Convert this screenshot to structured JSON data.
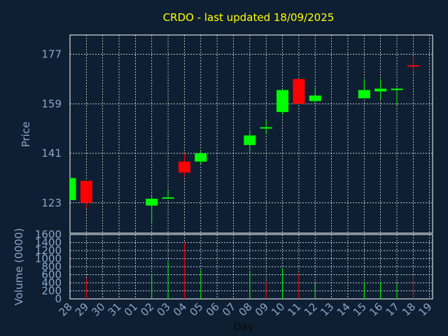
{
  "title": "CRDO - last updated 18/09/2025",
  "colors": {
    "background": "#0e1f33",
    "title": "#ffff00",
    "axis_text": "#8aa6c8",
    "grid": "#ffffff",
    "up": "#00ff00",
    "down": "#ff0000"
  },
  "chart_data": [
    {
      "type": "candlestick",
      "ylabel": "Price",
      "ylim": [
        112,
        184
      ],
      "yticks": [
        123,
        141,
        159,
        177
      ],
      "grid": true,
      "candles": [
        {
          "day": "28",
          "open": 124,
          "close": 132,
          "high": 132,
          "low": 124
        },
        {
          "day": "29",
          "open": 131,
          "close": 123,
          "high": 131,
          "low": 121
        },
        {
          "day": "02",
          "open": 122,
          "close": 124.5,
          "high": 125.5,
          "low": 116
        },
        {
          "day": "03",
          "open": 124.5,
          "close": 125,
          "high": 127.5,
          "low": 124.5
        },
        {
          "day": "04",
          "open": 138,
          "close": 134,
          "high": 141,
          "low": 132.5
        },
        {
          "day": "05",
          "open": 138,
          "close": 141,
          "high": 142,
          "low": 137
        },
        {
          "day": "08",
          "open": 144,
          "close": 147.5,
          "high": 149.5,
          "low": 141
        },
        {
          "day": "09",
          "open": 150.5,
          "close": 150.5,
          "high": 153,
          "low": 148
        },
        {
          "day": "10",
          "open": 156,
          "close": 164,
          "high": 164,
          "low": 155
        },
        {
          "day": "11",
          "open": 168,
          "close": 159,
          "high": 168,
          "low": 159
        },
        {
          "day": "12",
          "open": 160,
          "close": 162,
          "high": 165,
          "low": 159
        },
        {
          "day": "15",
          "open": 161,
          "close": 164,
          "high": 168,
          "low": 161
        },
        {
          "day": "16",
          "open": 163.5,
          "close": 164.5,
          "high": 168,
          "low": 160.5
        },
        {
          "day": "17",
          "open": 164,
          "close": 164.5,
          "high": 165,
          "low": 158.5
        },
        {
          "day": "18",
          "open": 173,
          "close": 172.5,
          "high": 176.5,
          "low": 170.5
        }
      ]
    },
    {
      "type": "bar",
      "ylabel": "Volume (0000)",
      "xlabel": "Day",
      "ylim": [
        0,
        1600
      ],
      "yticks": [
        0,
        200,
        400,
        600,
        800,
        1000,
        1200,
        1400,
        1600
      ],
      "categories": [
        "28",
        "29",
        "30",
        "31",
        "01",
        "02",
        "03",
        "04",
        "05",
        "06",
        "07",
        "08",
        "09",
        "10",
        "11",
        "12",
        "13",
        "14",
        "15",
        "16",
        "17",
        "18",
        "19"
      ],
      "bars": [
        {
          "day": "29",
          "value": 520,
          "direction": "down"
        },
        {
          "day": "02",
          "value": 620,
          "direction": "up"
        },
        {
          "day": "03",
          "value": 920,
          "direction": "up"
        },
        {
          "day": "04",
          "value": 1400,
          "direction": "down"
        },
        {
          "day": "05",
          "value": 720,
          "direction": "up"
        },
        {
          "day": "08",
          "value": 700,
          "direction": "up"
        },
        {
          "day": "09",
          "value": 420,
          "direction": "down"
        },
        {
          "day": "10",
          "value": 760,
          "direction": "up"
        },
        {
          "day": "11",
          "value": 640,
          "direction": "down"
        },
        {
          "day": "12",
          "value": 380,
          "direction": "up"
        },
        {
          "day": "15",
          "value": 420,
          "direction": "up"
        },
        {
          "day": "16",
          "value": 420,
          "direction": "up"
        },
        {
          "day": "17",
          "value": 380,
          "direction": "up"
        },
        {
          "day": "18",
          "value": 560,
          "direction": "down"
        }
      ]
    }
  ]
}
